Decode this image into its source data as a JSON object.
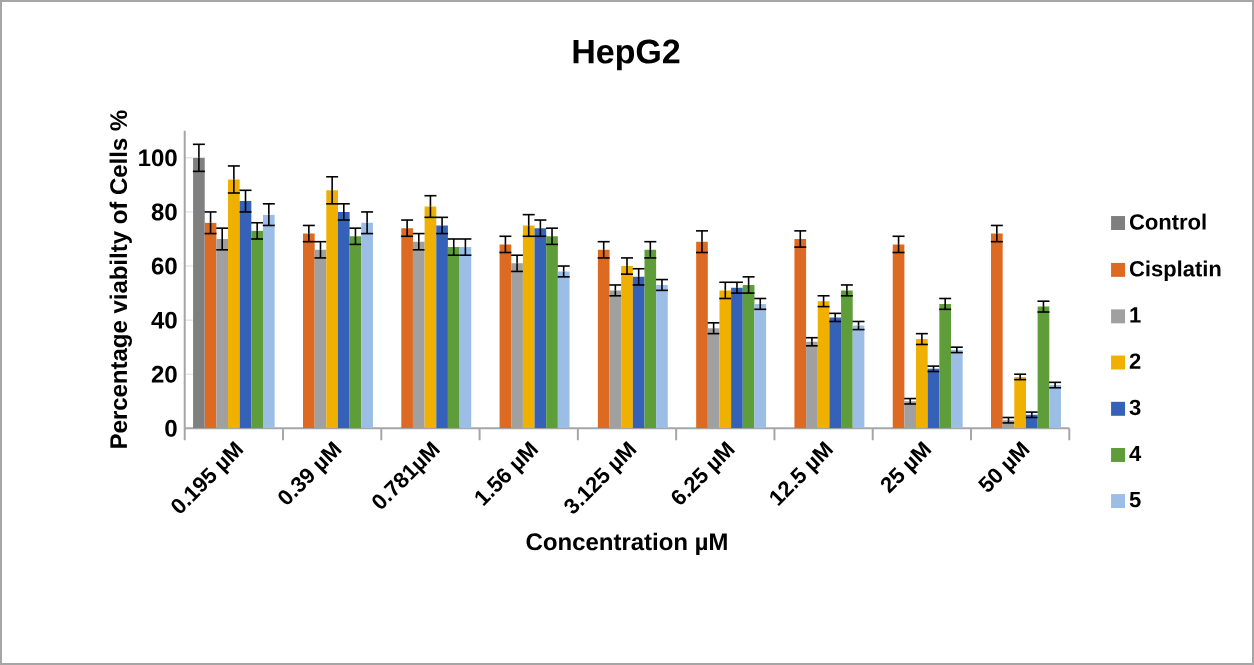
{
  "chart_data": {
    "type": "bar",
    "title": "HepG2",
    "xlabel": "Concentration µM",
    "ylabel": "Percentage viabilty of Cells %",
    "categories": [
      "0.195 µM",
      "0.39 µM",
      "0.781µM",
      "1.56 µM",
      "3.125 µM",
      "6.25 µM",
      "12.5 µM",
      "25 µM",
      "50 µM"
    ],
    "ylim": [
      0,
      110
    ],
    "yticks": [
      0,
      20,
      40,
      60,
      80,
      100
    ],
    "grid": false,
    "legend": "right",
    "series": [
      {
        "name": "Control",
        "color": "#7f7f7f",
        "values": [
          100,
          null,
          null,
          null,
          null,
          null,
          null,
          null,
          null
        ],
        "errors": [
          5,
          null,
          null,
          null,
          null,
          null,
          null,
          null,
          null
        ]
      },
      {
        "name": "Cisplatin",
        "color": "#dd6a22",
        "values": [
          76,
          72,
          74,
          68,
          66,
          69,
          70,
          68,
          72
        ],
        "errors": [
          4,
          3,
          3,
          3,
          3,
          4,
          3,
          3,
          3
        ]
      },
      {
        "name": "1",
        "color": "#a0a0a0",
        "values": [
          70,
          66,
          69,
          61,
          51,
          37,
          32,
          10,
          3
        ],
        "errors": [
          4,
          3,
          3,
          3,
          2,
          2,
          1.5,
          1,
          1
        ]
      },
      {
        "name": "2",
        "color": "#efb000",
        "values": [
          92,
          88,
          82,
          75,
          60,
          51,
          47,
          33,
          19
        ],
        "errors": [
          5,
          5,
          4,
          4,
          3,
          3,
          2,
          2,
          1
        ]
      },
      {
        "name": "3",
        "color": "#3562b8",
        "values": [
          84,
          80,
          75,
          74,
          56,
          52,
          41,
          22,
          5
        ],
        "errors": [
          4,
          3,
          3,
          3,
          3,
          2,
          1.5,
          1,
          1
        ]
      },
      {
        "name": "4",
        "color": "#5f9d3a",
        "values": [
          73,
          71,
          67,
          71,
          66,
          53,
          51,
          46,
          45
        ],
        "errors": [
          3,
          3,
          3,
          3,
          3,
          3,
          2,
          2,
          2
        ]
      },
      {
        "name": "5",
        "color": "#9bbde6",
        "values": [
          79,
          76,
          67,
          58,
          53,
          46,
          38,
          29,
          16
        ],
        "errors": [
          4,
          4,
          3,
          2,
          2,
          2,
          1.5,
          1,
          1
        ]
      }
    ]
  }
}
